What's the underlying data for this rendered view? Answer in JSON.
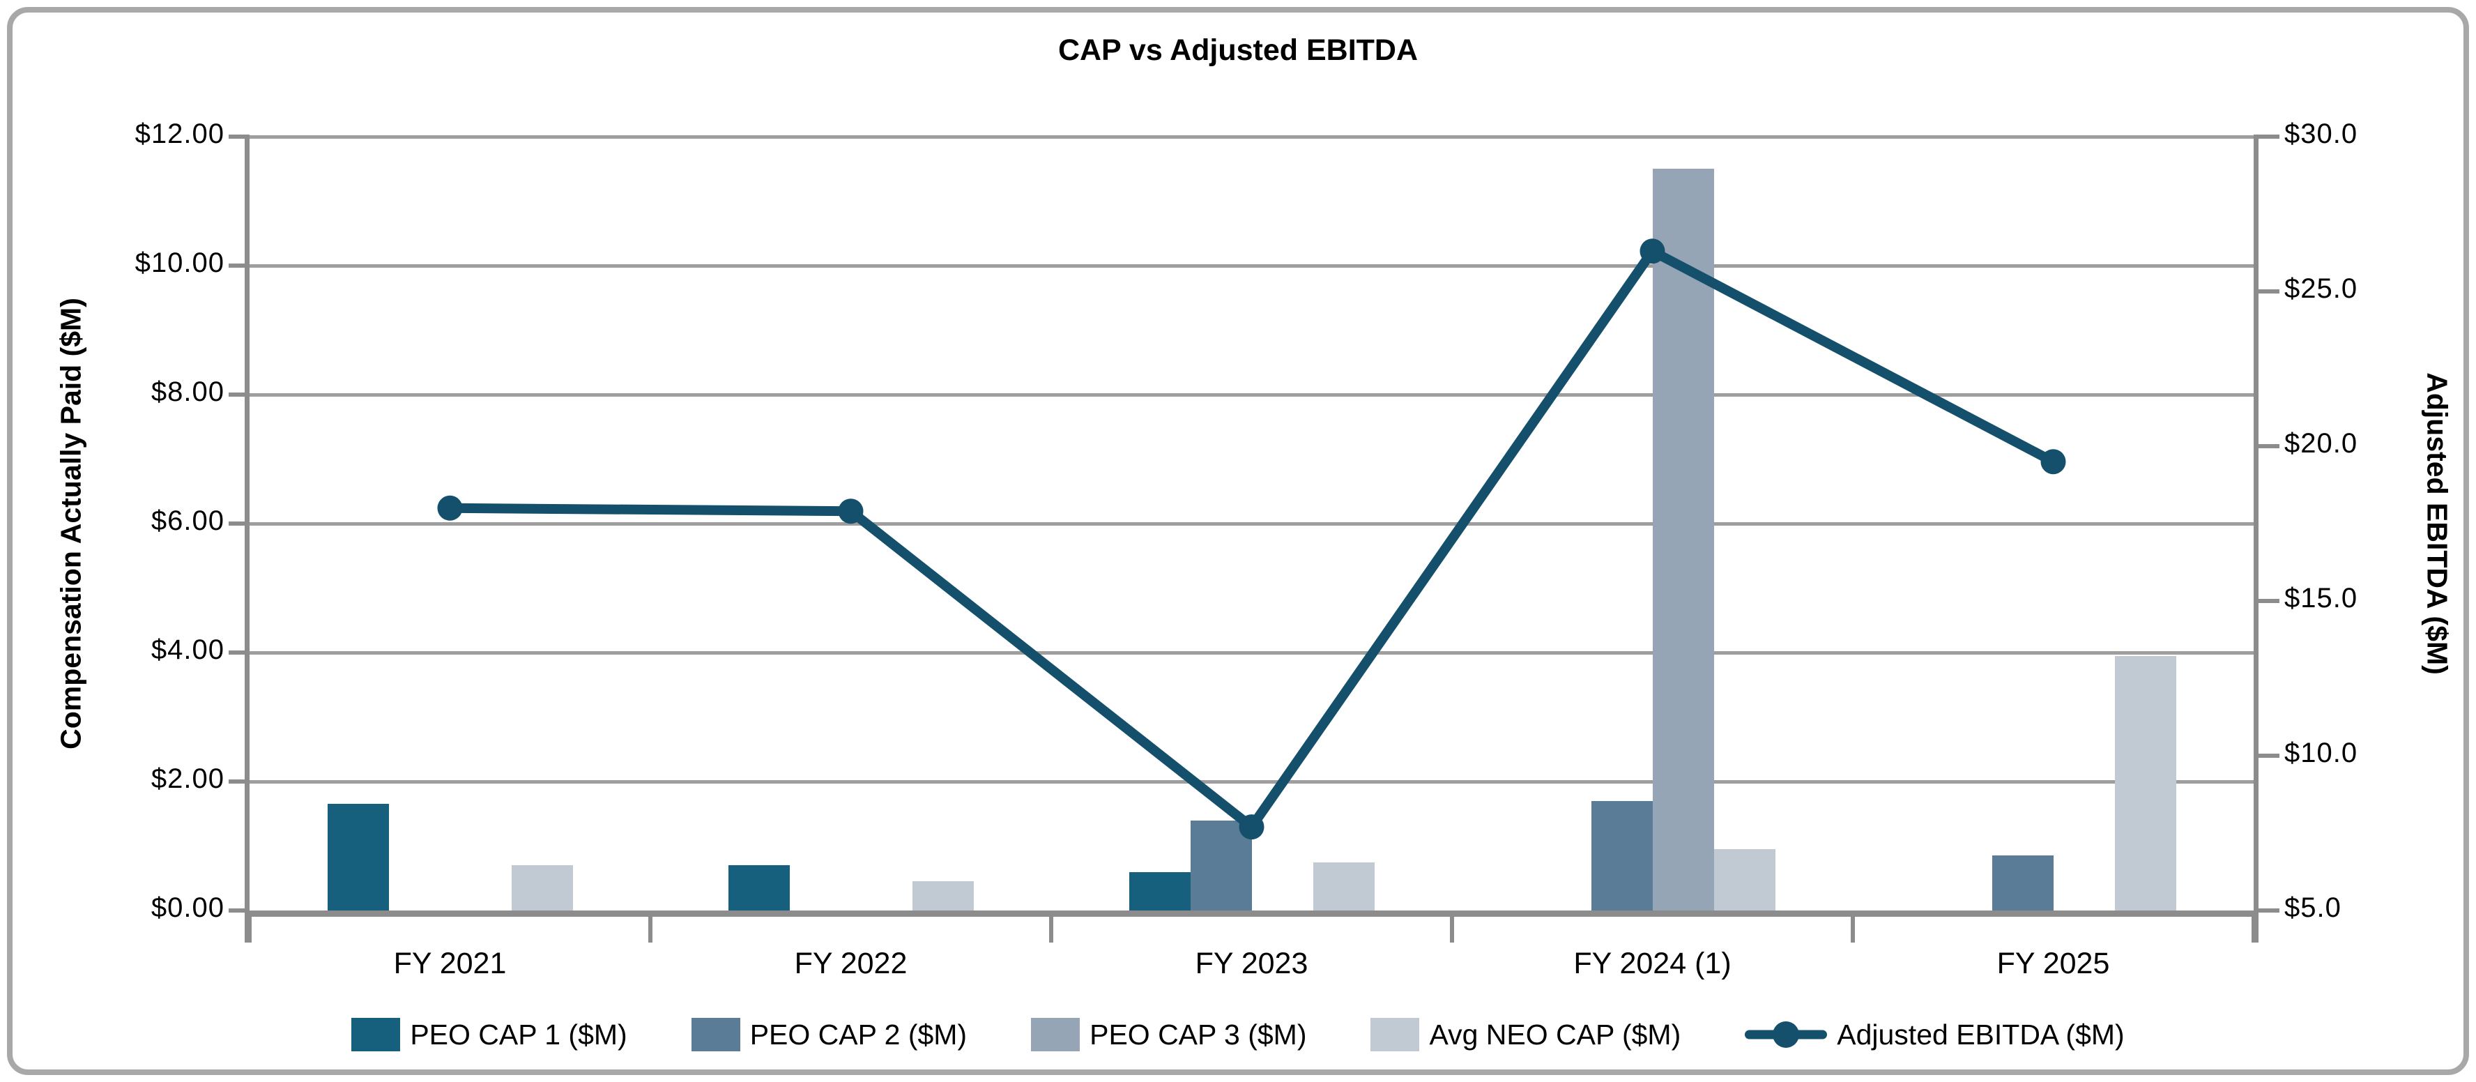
{
  "figure": {
    "title": "CAP vs Adjusted EBITDA"
  },
  "chart_data": {
    "type": "bar",
    "subtype": "combo-bar-line-dual-axis",
    "title": "CAP vs Adjusted EBITDA",
    "categories": [
      "FY 2021",
      "FY 2022",
      "FY 2023",
      "FY 2024 (1)",
      "FY 2025"
    ],
    "series": [
      {
        "name": "PEO CAP 1 ($M)",
        "type": "bar",
        "axis": "left",
        "color": "#16607e",
        "values": [
          1.65,
          0.7,
          0.6,
          0.0,
          0.0
        ]
      },
      {
        "name": "PEO CAP 2 ($M)",
        "type": "bar",
        "axis": "left",
        "color": "#5a7c96",
        "values": [
          0.0,
          0.0,
          1.4,
          1.7,
          0.85
        ]
      },
      {
        "name": "PEO CAP 3 ($M)",
        "type": "bar",
        "axis": "left",
        "color": "#96a5b5",
        "values": [
          0.0,
          0.0,
          0.0,
          11.5,
          0.0
        ]
      },
      {
        "name": "Avg NEO CAP ($M)",
        "type": "bar",
        "axis": "left",
        "color": "#c1c9d2",
        "values": [
          0.7,
          0.45,
          0.75,
          0.95,
          3.95
        ]
      },
      {
        "name": "Adjusted EBITDA ($M)",
        "type": "line",
        "axis": "right",
        "color": "#14506b",
        "values": [
          18.0,
          17.9,
          7.7,
          26.3,
          19.5
        ]
      }
    ],
    "left_axis": {
      "label": "Compensation Actually Paid ($M)",
      "min": 0,
      "max": 12,
      "ticks": [
        {
          "value": 12,
          "label": "$12.00"
        },
        {
          "value": 10,
          "label": "$10.00"
        },
        {
          "value": 8,
          "label": "$8.00"
        },
        {
          "value": 6,
          "label": "$6.00"
        },
        {
          "value": 4,
          "label": "$4.00"
        },
        {
          "value": 2,
          "label": "$2.00"
        },
        {
          "value": 0,
          "label": "$0.00"
        }
      ]
    },
    "right_axis": {
      "label": "Adjusted EBITDA ($M)",
      "min": 5,
      "max": 30,
      "ticks": [
        {
          "value": 30,
          "label": "$30.0"
        },
        {
          "value": 25,
          "label": "$25.0"
        },
        {
          "value": 20,
          "label": "$20.0"
        },
        {
          "value": 15,
          "label": "$15.0"
        },
        {
          "value": 10,
          "label": "$10.0"
        },
        {
          "value": 5,
          "label": "$5.0"
        }
      ]
    },
    "layout": {
      "grid": "horizontal-every-2-left-units",
      "legend_position": "bottom-center",
      "gridline_color": "#9e9e9e",
      "axis_color": "#8c8c8c"
    }
  }
}
